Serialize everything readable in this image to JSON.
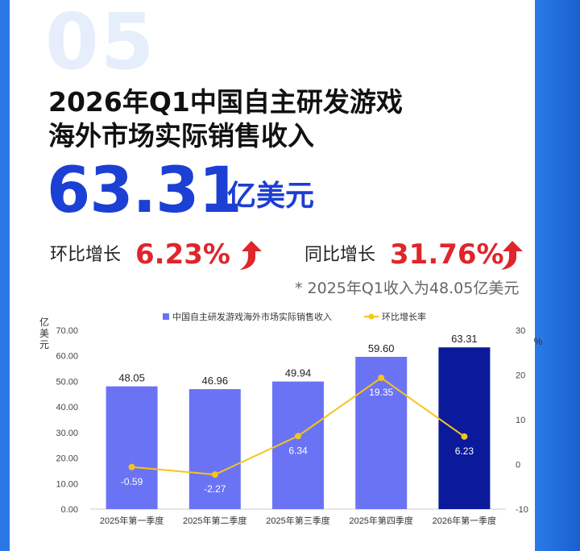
{
  "section_number": "05",
  "title_line1": "2026年Q1中国自主研发游戏",
  "title_line2": "海外市场实际销售收入",
  "headline_value": "63.31",
  "headline_unit": "亿美元",
  "qoq_label": "环比增长",
  "qoq_value": "6.23%",
  "yoy_label": "同比增长",
  "yoy_value": "31.76%",
  "note": "* 2025年Q1收入为48.05亿美元",
  "colors": {
    "bar": "#6b73f5",
    "bar_highlight": "#0b1a9a",
    "line": "#f5c518",
    "accent_blue": "#1c3fd4",
    "accent_red": "#e0252b"
  },
  "chart_data": {
    "type": "bar",
    "categories": [
      "2025年第一季度",
      "2025年第二季度",
      "2025年第三季度",
      "2025年第四季度",
      "2026年第一季度"
    ],
    "series": [
      {
        "name": "中国自主研发游戏海外市场实际销售收入",
        "type": "bar",
        "axis": "left",
        "values": [
          48.05,
          46.96,
          49.94,
          59.6,
          63.31
        ],
        "labels": [
          "48.05",
          "46.96",
          "49.94",
          "59.60",
          "63.31"
        ]
      },
      {
        "name": "环比增长率",
        "type": "line",
        "axis": "right",
        "values": [
          -0.59,
          -2.27,
          6.34,
          19.35,
          6.23
        ],
        "labels": [
          "-0.59",
          "-2.27",
          "6.34",
          "19.35",
          "6.23"
        ]
      }
    ],
    "ylabel_left": "亿美元",
    "ylabel_right": "%",
    "ylim_left": [
      0,
      70
    ],
    "yticks_left": [
      "0.00",
      "10.00",
      "20.00",
      "30.00",
      "40.00",
      "50.00",
      "60.00",
      "70.00"
    ],
    "ylim_right": [
      -10,
      30
    ],
    "yticks_right": [
      "-10",
      "0",
      "10",
      "20",
      "30"
    ],
    "legend_position": "top-center",
    "grid": false,
    "highlight_index": 4
  }
}
